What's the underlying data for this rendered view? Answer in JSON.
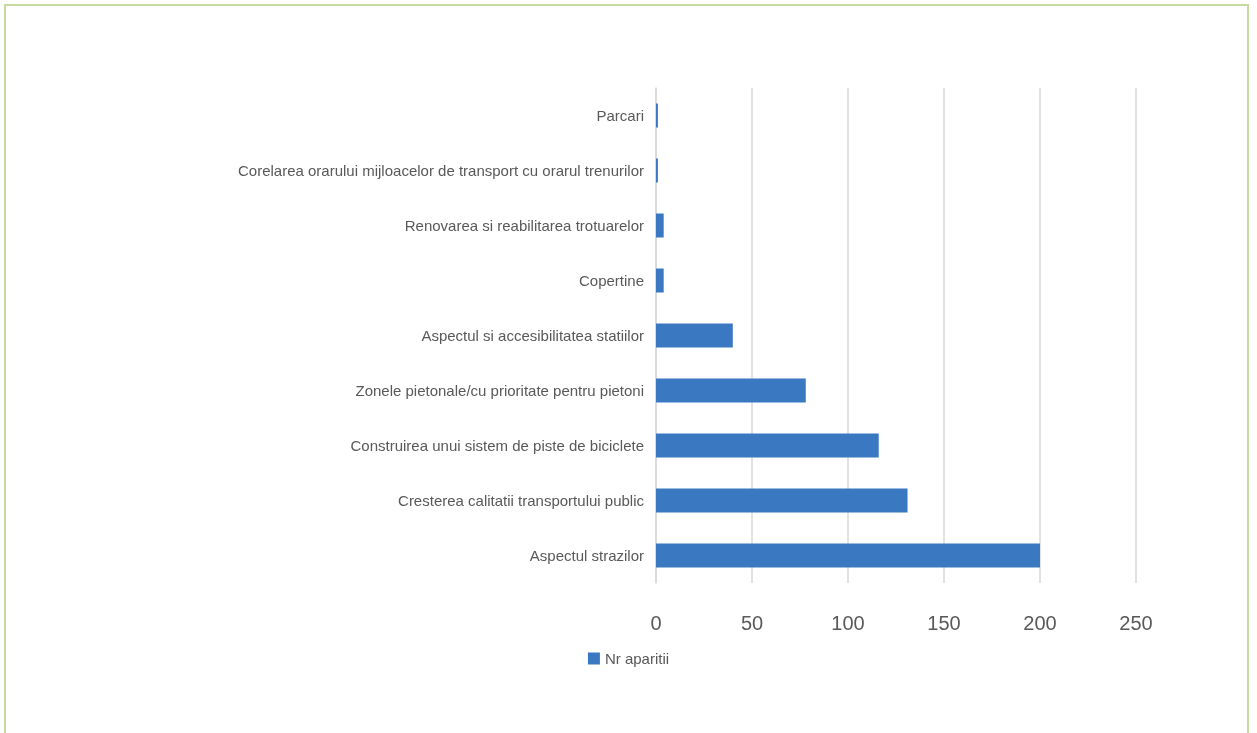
{
  "chart_data": {
    "type": "bar",
    "orientation": "horizontal",
    "categories": [
      "Parcari",
      "Corelarea orarului mijloacelor de transport cu orarul trenurilor",
      "Renovarea si reabilitarea trotuarelor",
      "Copertine",
      "Aspectul si accesibilitatea statiilor",
      "Zonele pietonale/cu prioritate pentru pietoni",
      "Construirea unui sistem de piste de biciclete",
      "Cresterea calitatii transportului public",
      "Aspectul strazilor"
    ],
    "series": [
      {
        "name": "Nr aparitii",
        "color": "#3a78c2",
        "values": [
          1,
          1,
          4,
          4,
          40,
          78,
          116,
          131,
          200
        ]
      }
    ],
    "xlim": [
      0,
      250
    ],
    "xticks": [
      0,
      50,
      100,
      150,
      200,
      250
    ],
    "grid": "x",
    "legend": "bottom"
  }
}
